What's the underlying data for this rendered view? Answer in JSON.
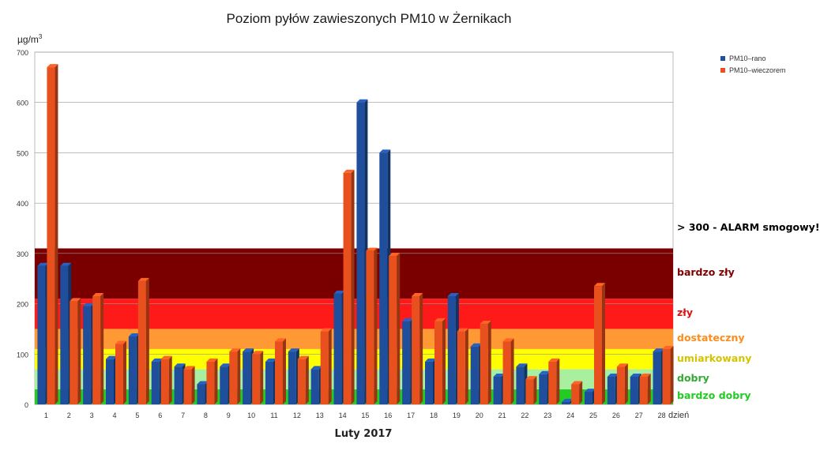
{
  "chart_data": {
    "type": "bar",
    "title": "Poziom pyłów zawieszonych PM10 w Żernikach",
    "unit_base": "µg/m",
    "unit_exp": "3",
    "xlabel": "Luty 2017",
    "x_axis_unit": "dzień",
    "ylim": [
      0,
      700
    ],
    "yticks": [
      0,
      100,
      200,
      300,
      400,
      500,
      600,
      700
    ],
    "grid": true,
    "legend_position": "top-right",
    "categories": [
      "1",
      "2",
      "3",
      "4",
      "5",
      "6",
      "7",
      "8",
      "9",
      "10",
      "11",
      "12",
      "13",
      "14",
      "15",
      "16",
      "17",
      "18",
      "19",
      "20",
      "21",
      "22",
      "23",
      "24",
      "25",
      "26",
      "27",
      "28"
    ],
    "series": [
      {
        "name": "PM10–rano",
        "color": "#1f4e9c",
        "values": [
          275,
          275,
          195,
          90,
          135,
          85,
          75,
          40,
          75,
          105,
          85,
          105,
          70,
          220,
          600,
          500,
          165,
          85,
          215,
          115,
          55,
          75,
          60,
          5,
          25,
          55,
          55,
          105
        ]
      },
      {
        "name": "PM10–wieczorem",
        "color": "#e8501e",
        "values": [
          670,
          205,
          215,
          120,
          245,
          90,
          70,
          85,
          105,
          100,
          125,
          90,
          145,
          460,
          305,
          295,
          215,
          165,
          145,
          160,
          125,
          50,
          85,
          40,
          235,
          75,
          55,
          110
        ]
      }
    ],
    "zones": [
      {
        "label": "bardzo dobry",
        "from": 0,
        "to": 30,
        "color": "#22cc22",
        "text_color": "#22cc22"
      },
      {
        "label": "dobry",
        "from": 30,
        "to": 70,
        "color": "#a8f0a0",
        "text_color": "#33aa33"
      },
      {
        "label": "umiarkowany",
        "from": 70,
        "to": 110,
        "color": "#ffff00",
        "text_color": "#d4c400"
      },
      {
        "label": "dostateczny",
        "from": 110,
        "to": 150,
        "color": "#ff9933",
        "text_color": "#ff8c1a"
      },
      {
        "label": "zły",
        "from": 150,
        "to": 210,
        "color": "#ff1a1a",
        "text_color": "#dd1111"
      },
      {
        "label": "bardzo zły",
        "from": 210,
        "to": 310,
        "color": "#7a0000",
        "text_color": "#800000"
      }
    ],
    "alarm_label": "> 300 - ALARM smogowy!"
  }
}
